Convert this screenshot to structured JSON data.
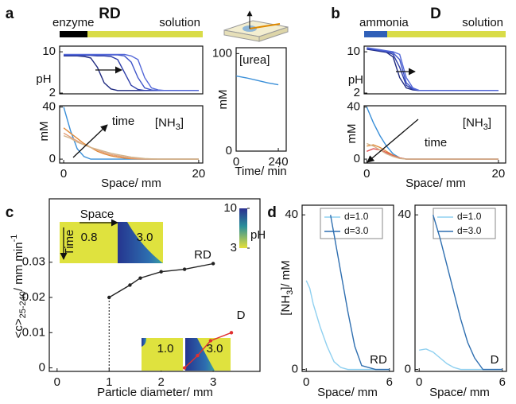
{
  "chart_data": [
    {
      "type": "line",
      "panel": "a",
      "title": "RD",
      "band": {
        "labels": [
          "enzyme",
          "solution"
        ],
        "colors": [
          "#000000",
          "#d9dc48"
        ]
      },
      "ylabel": "pH",
      "xlim": [
        -0.6,
        20.6
      ],
      "ylim": [
        1.85,
        11.1
      ],
      "yticks": [
        2,
        10
      ],
      "x": [
        0,
        1,
        2,
        3,
        4,
        5,
        6,
        7,
        8,
        9,
        10,
        11,
        12,
        13,
        14,
        15,
        16,
        17,
        18,
        19,
        20
      ],
      "series": [
        {
          "color": "#1f2a80",
          "values": [
            9.2,
            9.2,
            9.2,
            9.1,
            8.8,
            7,
            4,
            2.8,
            2.5,
            2.5,
            2.5,
            2.5,
            2.5,
            2.5,
            2.5,
            2.5,
            2.5,
            2.5,
            2.5,
            2.5,
            2.5
          ]
        },
        {
          "color": "#2d3da8",
          "values": [
            9.3,
            9.3,
            9.3,
            9.3,
            9.3,
            9.2,
            9.2,
            9.1,
            8.5,
            6,
            3.5,
            2.7,
            2.5,
            2.5,
            2.5,
            2.5,
            2.5,
            2.5,
            2.5,
            2.5,
            2.5
          ]
        },
        {
          "color": "#3f55c8",
          "values": [
            9.4,
            9.4,
            9.4,
            9.4,
            9.4,
            9.4,
            9.4,
            9.4,
            9.4,
            9.2,
            8,
            5,
            3,
            2.6,
            2.5,
            2.5,
            2.5,
            2.5,
            2.5,
            2.5,
            2.5
          ]
        },
        {
          "color": "#5468d8",
          "values": [
            9.5,
            9.5,
            9.5,
            9.5,
            9.5,
            9.5,
            9.5,
            9.5,
            9.5,
            9.5,
            9.2,
            8.5,
            5,
            3,
            2.6,
            2.5,
            2.5,
            2.5,
            2.5,
            2.5,
            2.5
          ]
        }
      ]
    },
    {
      "type": "line",
      "ylabel": "mM",
      "xlabel": "Space/ mm",
      "annotation": [
        "[NH",
        "3",
        "]"
      ],
      "annotation2": "time",
      "xlim": [
        -0.6,
        20.6
      ],
      "ylim": [
        -3,
        41
      ],
      "xticks": [
        0,
        20
      ],
      "yticks": [
        0,
        40
      ],
      "x": [
        0,
        1,
        2,
        3,
        4,
        5,
        6,
        7,
        8,
        9,
        10,
        12,
        14,
        16,
        18,
        20
      ],
      "series": [
        {
          "color": "#3a8fd8",
          "values": [
            40,
            22,
            8,
            2,
            0,
            0,
            0,
            0,
            0,
            0,
            0,
            0,
            0,
            0,
            0,
            0
          ]
        },
        {
          "color": "#e08a3a",
          "values": [
            24,
            20,
            16,
            12,
            9,
            6,
            4,
            2.5,
            1.5,
            0.8,
            0.3,
            0,
            0,
            0,
            0,
            0
          ]
        },
        {
          "color": "#e4a07a",
          "values": [
            20,
            17,
            14,
            11,
            9,
            7,
            5,
            3.5,
            2.5,
            1.5,
            0.8,
            0.2,
            0,
            0,
            0,
            0
          ]
        },
        {
          "color": "#d2b48c",
          "values": [
            18,
            16,
            13,
            11,
            9,
            7.5,
            6,
            4.5,
            3.5,
            2.5,
            1.5,
            0.5,
            0,
            0,
            0,
            0
          ]
        }
      ]
    },
    {
      "type": "line",
      "ylabel": "mM",
      "xlabel": "Time/ min",
      "annotation": "[urea]",
      "xlim": [
        0,
        285
      ],
      "ylim": [
        0,
        106
      ],
      "xticks": [
        0,
        240
      ],
      "yticks": [
        0,
        100
      ],
      "x": [
        0,
        60,
        120,
        180,
        240
      ],
      "series": [
        {
          "color": "#3a8fd8",
          "values": [
            77,
            75,
            72.5,
            70,
            68
          ]
        }
      ]
    },
    {
      "type": "line",
      "panel": "b",
      "title": "D",
      "band": {
        "labels": [
          "ammonia",
          "solution"
        ],
        "colors": [
          "#2f5fb8",
          "#d9dc48"
        ]
      },
      "ylabel": "pH",
      "xlim": [
        -0.4,
        21.1
      ],
      "ylim": [
        1.85,
        11.1
      ],
      "yticks": [
        2,
        10
      ],
      "x": [
        0,
        1,
        2,
        3,
        4,
        5,
        6,
        7,
        8,
        9,
        10,
        11,
        12,
        13,
        14,
        15,
        16,
        17,
        18,
        19,
        20
      ],
      "series": [
        {
          "color": "#1f2a80",
          "values": [
            10.5,
            10.3,
            10.1,
            9.9,
            9,
            5,
            3,
            2.6,
            2.5,
            2.5,
            2.5,
            2.5,
            2.5,
            2.5,
            2.5,
            2.5,
            2.5,
            2.5,
            2.5,
            2.5,
            2.5
          ]
        },
        {
          "color": "#2d3da8",
          "values": [
            10.6,
            10.4,
            10.2,
            10,
            9.5,
            7,
            3.5,
            2.7,
            2.5,
            2.5,
            2.5,
            2.5,
            2.5,
            2.5,
            2.5,
            2.5,
            2.5,
            2.5,
            2.5,
            2.5,
            2.5
          ]
        },
        {
          "color": "#3f55c8",
          "values": [
            10.7,
            10.5,
            10.3,
            10.1,
            9.8,
            8.5,
            4,
            2.8,
            2.5,
            2.5,
            2.5,
            2.5,
            2.5,
            2.5,
            2.5,
            2.5,
            2.5,
            2.5,
            2.5,
            2.5,
            2.5
          ]
        },
        {
          "color": "#5468d8",
          "values": [
            10.8,
            10.6,
            10.4,
            10.2,
            10,
            9.5,
            5,
            3,
            2.5,
            2.5,
            2.5,
            2.5,
            2.5,
            2.5,
            2.5,
            2.5,
            2.5,
            2.5,
            2.5,
            2.5,
            2.5
          ]
        }
      ]
    },
    {
      "type": "line",
      "ylabel": "mM",
      "xlabel": "Space/ mm",
      "annotation": [
        "[NH",
        "3",
        "]"
      ],
      "annotation2": "time",
      "xlim": [
        -0.4,
        21.1
      ],
      "ylim": [
        -3,
        41
      ],
      "xticks": [
        0,
        20
      ],
      "yticks": [
        0,
        40
      ],
      "x": [
        0,
        1,
        2,
        3,
        4,
        5,
        6,
        7,
        8,
        9,
        10,
        12,
        14,
        16,
        18,
        20
      ],
      "series": [
        {
          "color": "#3a8fd8",
          "values": [
            40,
            28,
            18,
            10,
            4,
            1,
            0,
            0,
            0,
            0,
            0,
            0,
            0,
            0,
            0,
            0
          ]
        },
        {
          "color": "#e08a3a",
          "values": [
            10,
            11,
            9,
            6,
            3,
            1,
            0,
            0,
            0,
            0,
            0,
            0,
            0,
            0,
            0,
            0
          ]
        },
        {
          "color": "#e05050",
          "values": [
            6,
            8,
            7,
            5,
            2.5,
            0.8,
            0,
            0,
            0,
            0,
            0,
            0,
            0,
            0,
            0,
            0
          ]
        },
        {
          "color": "#d2b48c",
          "values": [
            12,
            10,
            7,
            4,
            2,
            0.5,
            0,
            0,
            0,
            0,
            0,
            0,
            0,
            0,
            0,
            0
          ]
        }
      ]
    },
    {
      "type": "line",
      "panel": "c",
      "markers": true,
      "ylabel": [
        "<c>",
        "25-240",
        "/ mm min",
        "-1"
      ],
      "xlabel": "Particle diameter/ mm",
      "xlim": [
        -0.15,
        3.9
      ],
      "ylim": [
        -0.001,
        0.048
      ],
      "xticks": [
        0,
        1,
        2,
        3
      ],
      "yticks": [
        0,
        0.01,
        0.02,
        0.03
      ],
      "series": [
        {
          "name": "RD",
          "color": "#222222",
          "x": [
            1,
            1.4,
            1.6,
            2,
            2.45,
            3
          ],
          "values": [
            0.02,
            0.0235,
            0.0255,
            0.0273,
            0.028,
            0.0296
          ]
        },
        {
          "name": "D",
          "color": "#e03030",
          "x": [
            2.45,
            2.7,
            2.95,
            3.35
          ],
          "values": [
            0,
            0.0035,
            0.0077,
            0.01
          ]
        }
      ],
      "insets": {
        "space": "Space",
        "time": "Time",
        "top": [
          "0.8",
          "3.0"
        ],
        "bottom": [
          "1.0",
          "3.0"
        ]
      },
      "colorbar": {
        "label": "pH",
        "ticks": [
          3,
          10
        ]
      }
    },
    {
      "type": "line",
      "panel": "d",
      "legend": true,
      "annotation": "RD",
      "ylabel": [
        "[NH",
        "3",
        "]/ mM"
      ],
      "xlabel": "Space/ mm",
      "xlim": [
        -0.3,
        6.3
      ],
      "ylim": [
        -0.5,
        42.5
      ],
      "xticks": [
        0,
        6
      ],
      "yticks": [
        0,
        40
      ],
      "series": [
        {
          "name": "d=1.0",
          "color": "#8fd0f0",
          "x": [
            0,
            0.25,
            0.5,
            1,
            1.5,
            2,
            2.5,
            3,
            4,
            5,
            6
          ],
          "values": [
            23,
            21,
            17,
            11,
            6,
            2,
            0.5,
            0,
            0,
            0,
            0
          ]
        },
        {
          "name": "d=3.0",
          "color": "#2f6fb0",
          "x": [
            1.75,
            2,
            2.5,
            3,
            3.5,
            4,
            5,
            6
          ],
          "values": [
            40,
            35,
            25,
            15,
            6,
            1,
            0,
            0
          ]
        }
      ]
    },
    {
      "type": "line",
      "legend": true,
      "annotation": "D",
      "xlabel": "Space/ mm",
      "xlim": [
        -0.3,
        6.3
      ],
      "ylim": [
        -0.5,
        42.5
      ],
      "xticks": [
        0,
        6
      ],
      "yticks": [
        0,
        40
      ],
      "series": [
        {
          "name": "d=1.0",
          "color": "#8fd0f0",
          "x": [
            0,
            0.5,
            1,
            1.5,
            2,
            2.5,
            3,
            4,
            5,
            6
          ],
          "values": [
            5,
            5.3,
            4.5,
            3,
            1.5,
            0.5,
            0,
            0,
            0,
            0
          ]
        },
        {
          "name": "d=3.0",
          "color": "#2f6fb0",
          "x": [
            1,
            1.5,
            2,
            2.5,
            3,
            3.5,
            4,
            4.6,
            5,
            6
          ],
          "values": [
            40,
            34,
            27,
            20,
            13,
            7,
            3,
            0,
            0,
            0
          ]
        }
      ]
    }
  ]
}
